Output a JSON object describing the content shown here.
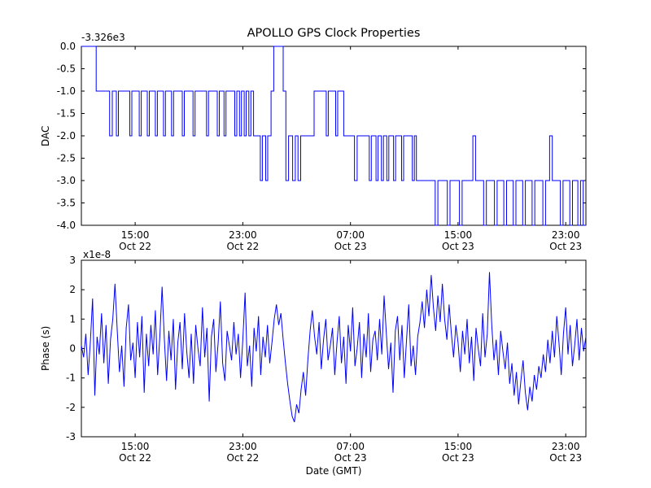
{
  "title": "APOLLO GPS Clock Properties",
  "xlabel": "Date (GMT)",
  "line_color": "#0000ff",
  "chart_data": [
    {
      "id": "dac",
      "type": "line",
      "style": "step",
      "ylabel": "DAC",
      "offset_text": "-3.326e3",
      "xlim": [
        0,
        37.5
      ],
      "ylim": [
        -4,
        0
      ],
      "yticks": [
        0,
        -0.5,
        -1,
        -1.5,
        -2,
        -2.5,
        -3,
        -3.5,
        -4
      ],
      "ytick_labels": [
        "0.0",
        "-0.5",
        "-1.0",
        "-1.5",
        "-2.0",
        "-2.5",
        "-3.0",
        "-3.5",
        "-4.0"
      ],
      "xticks": [
        4,
        12,
        20,
        28,
        36
      ],
      "xtick_labels": [
        [
          "15:00",
          "Oct 22"
        ],
        [
          "23:00",
          "Oct 22"
        ],
        [
          "07:00",
          "Oct 23"
        ],
        [
          "15:00",
          "Oct 23"
        ],
        [
          "23:00",
          "Oct 23"
        ]
      ],
      "step_segments": [
        [
          0,
          1.1,
          0
        ],
        [
          1.1,
          2.1,
          -1
        ],
        [
          2.1,
          2.3,
          -2
        ],
        [
          2.3,
          2.6,
          -1
        ],
        [
          2.6,
          2.75,
          -2
        ],
        [
          2.75,
          3.6,
          -1
        ],
        [
          3.6,
          3.75,
          -2
        ],
        [
          3.75,
          4.3,
          -1
        ],
        [
          4.3,
          4.45,
          -2
        ],
        [
          4.45,
          4.9,
          -1
        ],
        [
          4.9,
          5.05,
          -2
        ],
        [
          5.05,
          5.5,
          -1
        ],
        [
          5.5,
          5.65,
          -2
        ],
        [
          5.65,
          6.1,
          -1
        ],
        [
          6.1,
          6.25,
          -2
        ],
        [
          6.25,
          6.7,
          -1
        ],
        [
          6.7,
          6.85,
          -2
        ],
        [
          6.85,
          7.5,
          -1
        ],
        [
          7.5,
          7.65,
          -2
        ],
        [
          7.65,
          8.3,
          -1
        ],
        [
          8.3,
          8.45,
          -2
        ],
        [
          8.45,
          9.3,
          -1
        ],
        [
          9.3,
          9.45,
          -2
        ],
        [
          9.45,
          10.1,
          -1
        ],
        [
          10.1,
          10.25,
          -2
        ],
        [
          10.25,
          10.6,
          -1
        ],
        [
          10.6,
          10.75,
          -2
        ],
        [
          10.75,
          11.4,
          -1
        ],
        [
          11.4,
          11.55,
          -2
        ],
        [
          11.55,
          11.75,
          -1
        ],
        [
          11.75,
          11.9,
          -2
        ],
        [
          11.9,
          12.1,
          -1
        ],
        [
          12.1,
          12.25,
          -2
        ],
        [
          12.25,
          12.45,
          -1
        ],
        [
          12.45,
          12.6,
          -2
        ],
        [
          12.6,
          12.8,
          -1
        ],
        [
          12.8,
          13.3,
          -2
        ],
        [
          13.3,
          13.45,
          -3
        ],
        [
          13.45,
          13.7,
          -2
        ],
        [
          13.7,
          13.85,
          -3
        ],
        [
          13.85,
          14.1,
          -2
        ],
        [
          14.1,
          14.3,
          -1
        ],
        [
          14.3,
          15.0,
          0
        ],
        [
          15.0,
          15.2,
          -1
        ],
        [
          15.2,
          15.4,
          -3
        ],
        [
          15.4,
          15.7,
          -2
        ],
        [
          15.7,
          15.9,
          -3
        ],
        [
          15.9,
          16.1,
          -2
        ],
        [
          16.1,
          16.3,
          -3
        ],
        [
          16.3,
          17.3,
          -2
        ],
        [
          17.3,
          18.2,
          -1
        ],
        [
          18.2,
          18.35,
          -2
        ],
        [
          18.35,
          18.9,
          -1
        ],
        [
          18.9,
          19.05,
          -2
        ],
        [
          19.05,
          19.5,
          -1
        ],
        [
          19.5,
          20.3,
          -2
        ],
        [
          20.3,
          20.5,
          -3
        ],
        [
          20.5,
          21.4,
          -2
        ],
        [
          21.4,
          21.55,
          -3
        ],
        [
          21.55,
          21.9,
          -2
        ],
        [
          21.9,
          22.05,
          -3
        ],
        [
          22.05,
          22.3,
          -2
        ],
        [
          22.3,
          22.45,
          -3
        ],
        [
          22.45,
          22.7,
          -2
        ],
        [
          22.7,
          22.85,
          -3
        ],
        [
          22.85,
          23.2,
          -2
        ],
        [
          23.2,
          23.35,
          -3
        ],
        [
          23.35,
          23.8,
          -2
        ],
        [
          23.8,
          23.95,
          -3
        ],
        [
          23.95,
          24.6,
          -2
        ],
        [
          24.6,
          24.75,
          -3
        ],
        [
          24.75,
          24.9,
          -2
        ],
        [
          24.9,
          26.3,
          -3
        ],
        [
          26.3,
          26.5,
          -4
        ],
        [
          26.5,
          27.2,
          -3
        ],
        [
          27.2,
          27.4,
          -4
        ],
        [
          27.4,
          28.1,
          -3
        ],
        [
          28.1,
          28.3,
          -4
        ],
        [
          28.3,
          29.1,
          -3
        ],
        [
          29.1,
          29.3,
          -2
        ],
        [
          29.3,
          29.9,
          -3
        ],
        [
          29.9,
          30.1,
          -4
        ],
        [
          30.1,
          30.7,
          -3
        ],
        [
          30.7,
          30.9,
          -4
        ],
        [
          30.9,
          31.4,
          -3
        ],
        [
          31.4,
          31.6,
          -4
        ],
        [
          31.6,
          32.1,
          -3
        ],
        [
          32.1,
          32.3,
          -4
        ],
        [
          32.3,
          32.8,
          -3
        ],
        [
          32.8,
          33.0,
          -4
        ],
        [
          33.0,
          33.5,
          -3
        ],
        [
          33.5,
          33.7,
          -4
        ],
        [
          33.7,
          34.3,
          -3
        ],
        [
          34.3,
          34.5,
          -4
        ],
        [
          34.5,
          34.8,
          -3
        ],
        [
          34.8,
          35.0,
          -2
        ],
        [
          35.0,
          35.6,
          -3
        ],
        [
          35.6,
          35.8,
          -4
        ],
        [
          35.8,
          36.3,
          -3
        ],
        [
          36.3,
          36.5,
          -4
        ],
        [
          36.5,
          36.9,
          -3
        ],
        [
          36.9,
          37.1,
          -4
        ],
        [
          37.1,
          37.3,
          -3
        ],
        [
          37.3,
          37.5,
          -4
        ]
      ]
    },
    {
      "id": "phase",
      "type": "line",
      "ylabel": "Phase (s)",
      "offset_text": "x1e-8",
      "xlim": [
        0,
        37.5
      ],
      "ylim": [
        -3,
        3
      ],
      "yticks": [
        3,
        2,
        1,
        0,
        -1,
        -2,
        -3
      ],
      "ytick_labels": [
        "3",
        "2",
        "1",
        "0",
        "-1",
        "-2",
        "-3"
      ],
      "xticks": [
        4,
        12,
        20,
        28,
        36
      ],
      "xtick_labels": [
        [
          "15:00",
          "Oct 22"
        ],
        [
          "23:00",
          "Oct 22"
        ],
        [
          "07:00",
          "Oct 23"
        ],
        [
          "15:00",
          "Oct 23"
        ],
        [
          "23:00",
          "Oct 23"
        ]
      ],
      "x0": 0,
      "dx": 0.1666667,
      "y": [
        0.1,
        -0.3,
        0.5,
        -0.9,
        0.2,
        1.7,
        -1.6,
        0.4,
        -0.2,
        1.2,
        -0.5,
        0.8,
        -1.2,
        0.3,
        1.0,
        2.2,
        0.6,
        -0.8,
        0.1,
        -1.3,
        0.7,
        1.5,
        -0.4,
        0.2,
        -1.0,
        0.9,
        -0.3,
        1.1,
        -1.5,
        0.5,
        -0.6,
        0.8,
        -0.2,
        1.3,
        -0.9,
        0.4,
        2.1,
        0.3,
        -1.1,
        0.6,
        -0.4,
        1.0,
        -1.4,
        0.2,
        0.9,
        -0.7,
        1.2,
        -0.1,
        -1.0,
        0.5,
        -1.2,
        0.8,
        0.0,
        -0.6,
        1.4,
        -0.3,
        0.7,
        -1.8,
        0.4,
        1.0,
        -0.8,
        0.2,
        1.6,
        -0.5,
        -1.1,
        0.6,
        0.1,
        -0.4,
        0.9,
        -0.2,
        0.5,
        -1.0,
        0.3,
        1.9,
        -0.6,
        0.1,
        -1.3,
        0.7,
        -0.1,
        1.1,
        -0.9,
        0.4,
        -0.3,
        0.8,
        -0.5,
        0.2,
        1.0,
        1.5,
        0.8,
        1.2,
        0.3,
        -0.5,
        -1.2,
        -1.8,
        -2.3,
        -2.5,
        -1.9,
        -2.2,
        -1.4,
        -0.8,
        -1.6,
        -0.4,
        0.6,
        1.3,
        0.4,
        -0.2,
        0.9,
        -0.7,
        0.3,
        1.0,
        -0.4,
        0.1,
        0.7,
        -0.9,
        0.2,
        1.1,
        -0.5,
        0.4,
        -1.2,
        0.8,
        -0.1,
        1.4,
        -0.6,
        0.0,
        0.9,
        -1.0,
        0.5,
        -0.3,
        1.2,
        -0.8,
        0.3,
        0.6,
        -0.4,
        1.0,
        -0.2,
        1.8,
        0.5,
        -0.7,
        0.2,
        -1.5,
        0.6,
        1.1,
        -0.4,
        0.8,
        -1.0,
        0.3,
        1.5,
        -0.6,
        0.1,
        -0.9,
        0.4,
        0.9,
        1.6,
        0.7,
        2.0,
        1.1,
        2.5,
        1.4,
        0.6,
        1.8,
        0.9,
        2.2,
        1.0,
        0.3,
        1.5,
        0.5,
        -0.3,
        0.8,
        0.2,
        -0.8,
        0.6,
        -0.2,
        1.0,
        -0.5,
        0.4,
        -1.1,
        0.7,
        0.0,
        -0.6,
        1.2,
        -0.3,
        0.5,
        2.6,
        0.8,
        -0.4,
        0.3,
        -0.9,
        0.6,
        -0.1,
        -0.7,
        0.2,
        -1.2,
        -0.5,
        -1.6,
        -0.8,
        -1.9,
        -1.1,
        -0.4,
        -1.5,
        -2.1,
        -1.3,
        -1.8,
        -0.9,
        -1.4,
        -0.6,
        -1.0,
        -0.2,
        -0.8,
        0.3,
        -0.5,
        0.6,
        -0.3,
        1.1,
        0.2,
        -0.9,
        0.5,
        1.4,
        -0.2,
        0.8,
        -0.6,
        0.1,
        1.0,
        -0.4,
        0.7,
        -0.1,
        0.4
      ]
    }
  ]
}
